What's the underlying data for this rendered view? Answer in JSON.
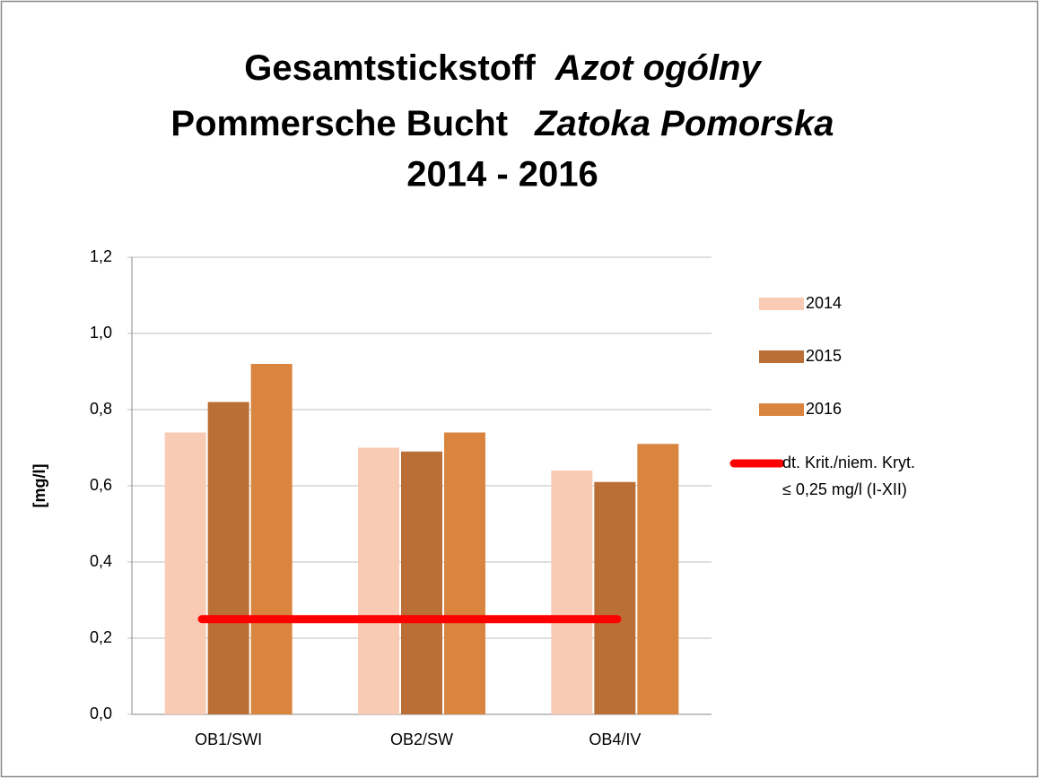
{
  "chart_data": {
    "type": "bar",
    "title": [
      "Gesamtstickstoff",
      "Azot ogólny",
      "Pommersche Bucht",
      "Zatoka Pomorska",
      "2014 - 2016"
    ],
    "y_label": "[mg/l]",
    "categories": [
      "OB1/SWI",
      "OB2/SW",
      "OB4/IV"
    ],
    "series": [
      {
        "name": "2014",
        "color": "#f9cbb5",
        "values": [
          0.74,
          0.7,
          0.64
        ]
      },
      {
        "name": "2015",
        "color": "#b96f36",
        "values": [
          0.82,
          0.69,
          0.61
        ]
      },
      {
        "name": "2016",
        "color": "#d9843f",
        "values": [
          0.92,
          0.74,
          0.71
        ]
      }
    ],
    "reference_line": {
      "name": [
        "dt. Krit./niem. Kryt.",
        "≤ 0,25 mg/l (I-XII)"
      ],
      "color": "#ff0000",
      "values": [
        0.25,
        0.25,
        0.25
      ]
    },
    "ylim": [
      0,
      1.2
    ],
    "yticks": [
      {
        "value": 0,
        "label": "0,0"
      },
      {
        "value": 0.2,
        "label": "0,2"
      },
      {
        "value": 0.4,
        "label": "0,4"
      },
      {
        "value": 0.6,
        "label": "0,6"
      },
      {
        "value": 0.8,
        "label": "0,8"
      },
      {
        "value": 1.0,
        "label": "1,0"
      },
      {
        "value": 1.2,
        "label": "1,2"
      }
    ],
    "grid": true,
    "legend": "right"
  }
}
